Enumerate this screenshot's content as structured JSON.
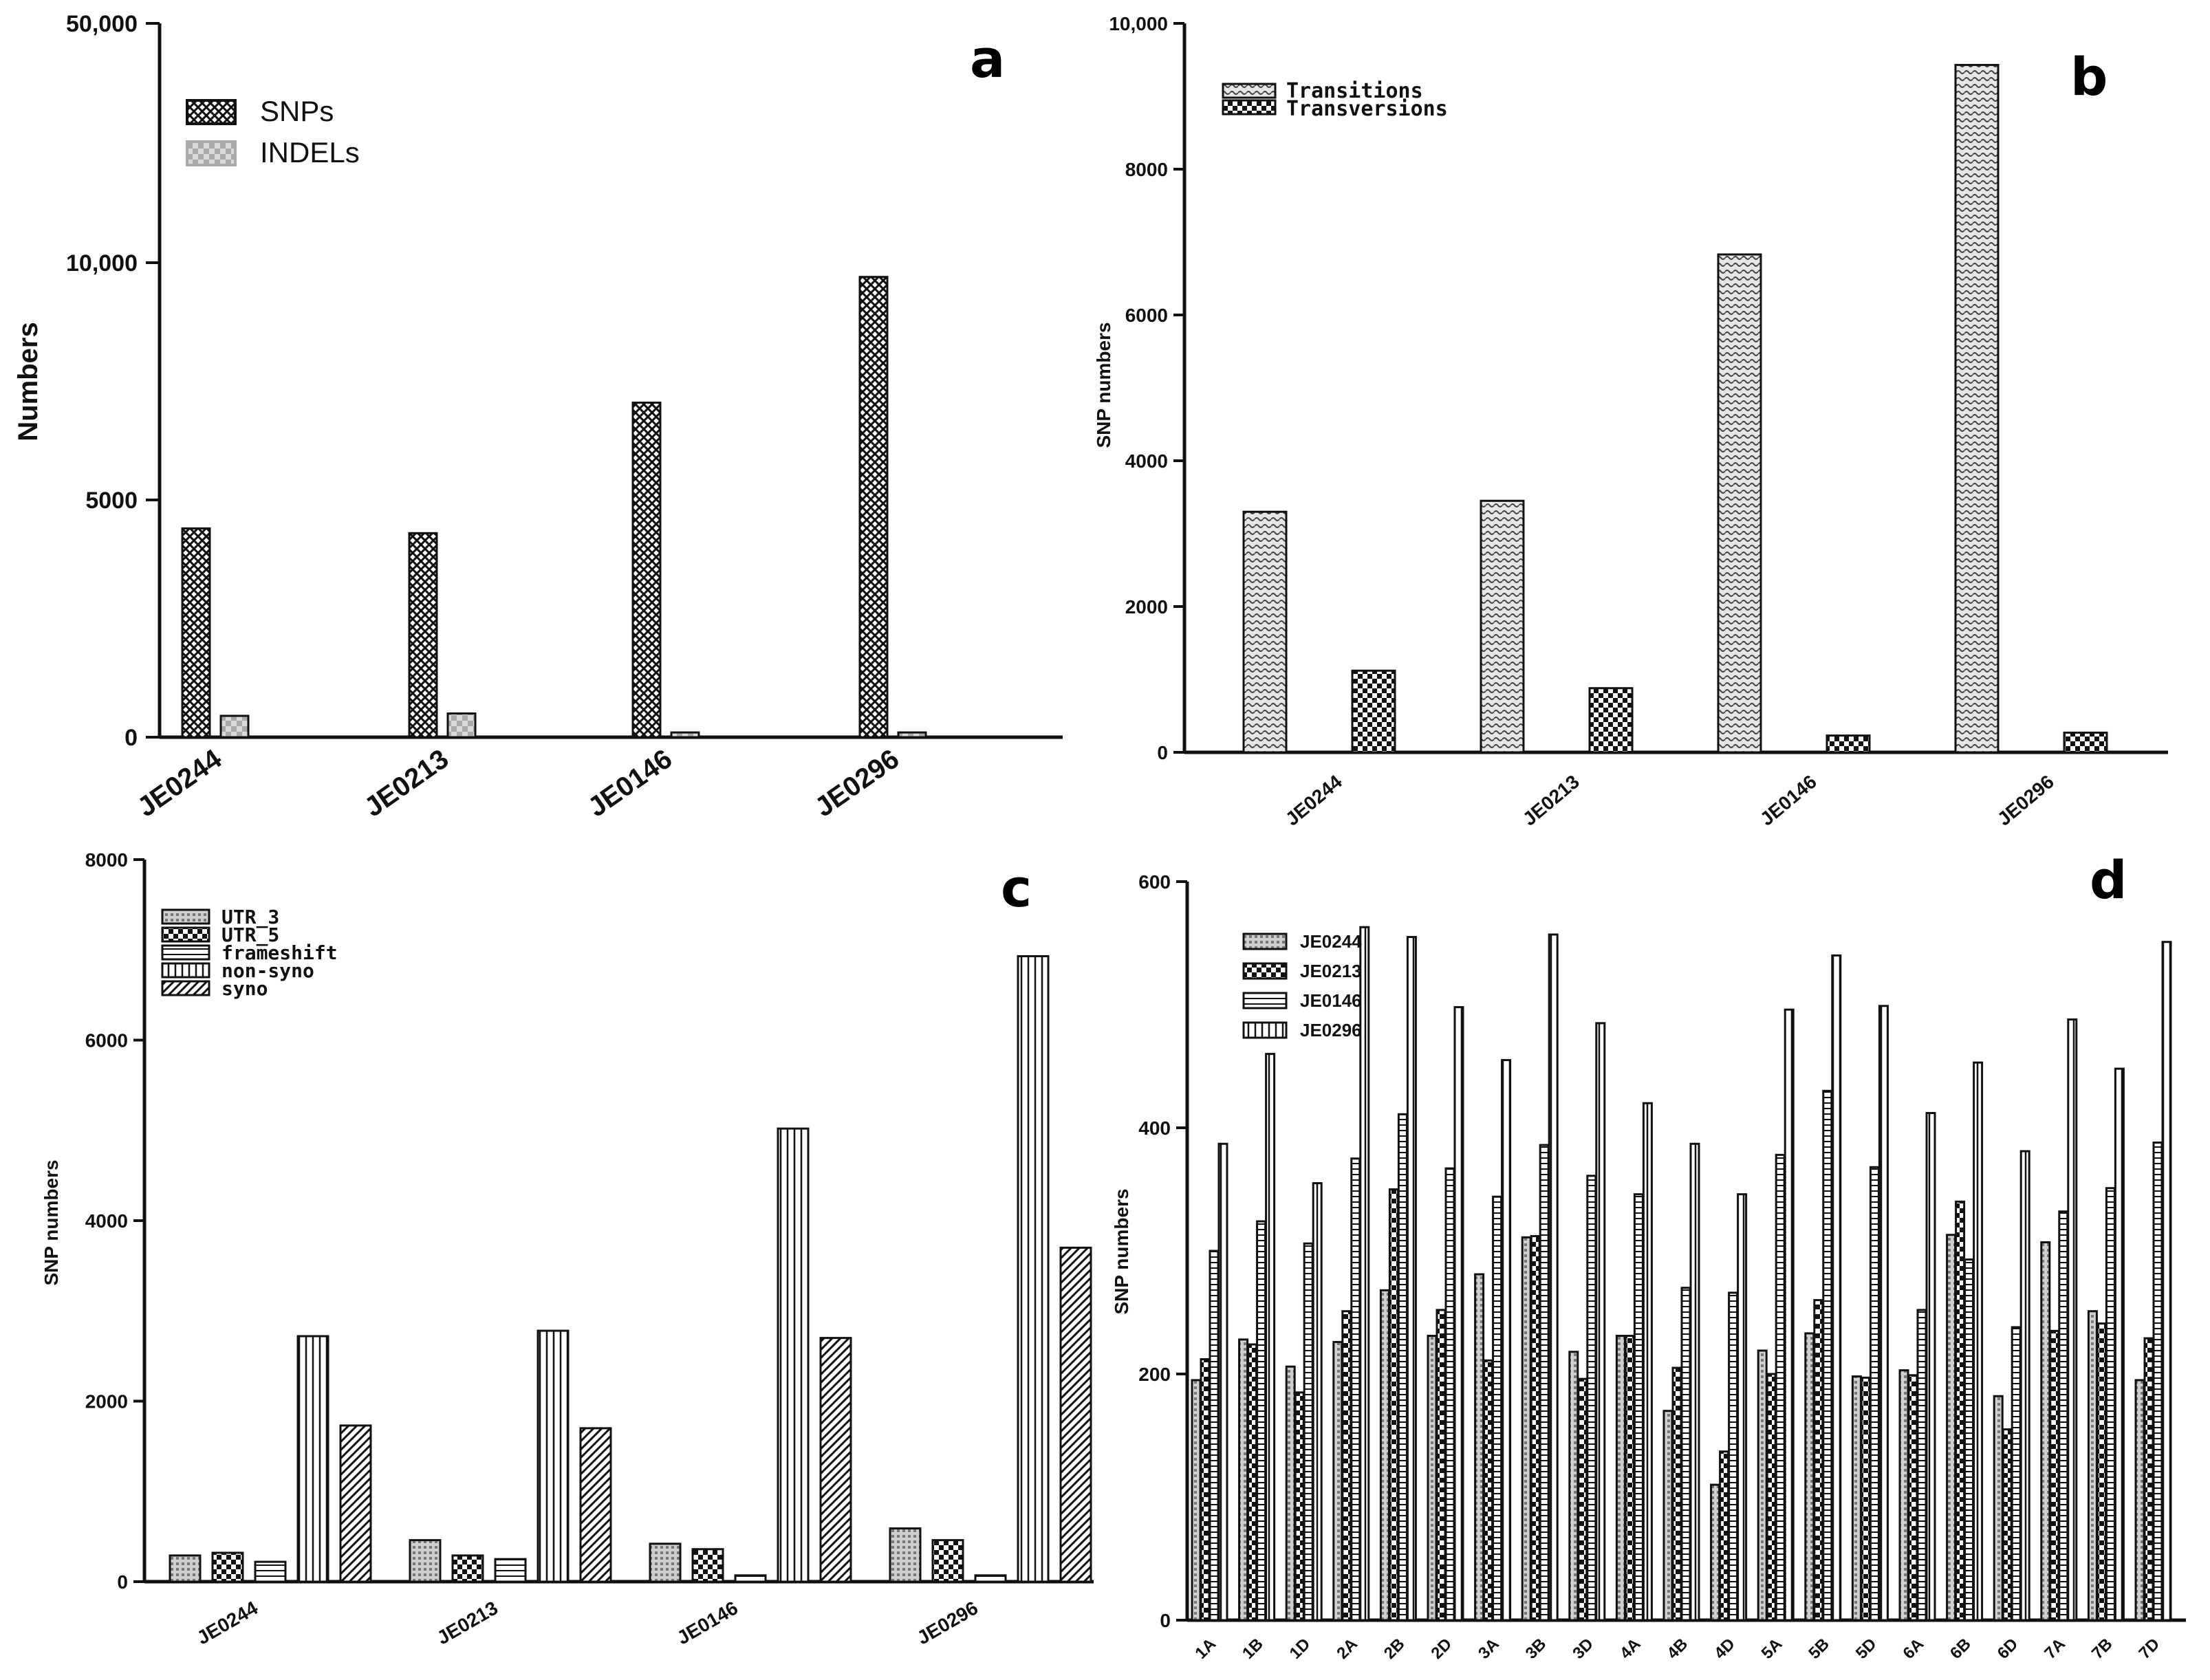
{
  "colors": {
    "ink": "#111111",
    "light": "#bdbdbd",
    "background": "#ffffff"
  },
  "chart_data": [
    {
      "id": "a",
      "type": "bar",
      "panel_label": "a",
      "title": "",
      "xlabel": "",
      "ylabel": "Numbers",
      "categories": [
        "JE0244",
        "JE0213",
        "JE0146",
        "JE0296"
      ],
      "series": [
        {
          "name": "SNPs",
          "values": [
            4400,
            4300,
            7050,
            9700
          ]
        },
        {
          "name": "INDELs",
          "values": [
            450,
            500,
            100,
            100
          ]
        }
      ],
      "y_axis_breaks": "segmented axis: 0-10000 linear with break to 50,000 at top",
      "yticks": [
        "0",
        "5000",
        "10,000",
        "50,000"
      ],
      "legend_position": "top-left"
    },
    {
      "id": "b",
      "type": "bar",
      "panel_label": "b",
      "title": "",
      "xlabel": "",
      "ylabel": "SNP numbers",
      "ylim": [
        0,
        10000
      ],
      "yticks": [
        "0",
        "2000",
        "4000",
        "6000",
        "8000",
        "10,000"
      ],
      "categories": [
        "JE0244",
        "JE0213",
        "JE0146",
        "JE0296"
      ],
      "series": [
        {
          "name": "Transitions",
          "values": [
            3300,
            3450,
            6830,
            9430
          ]
        },
        {
          "name": "Transversions",
          "values": [
            1120,
            880,
            230,
            270
          ]
        }
      ],
      "legend_position": "top-left"
    },
    {
      "id": "c",
      "type": "bar",
      "panel_label": "c",
      "title": "",
      "xlabel": "",
      "ylabel": "SNP numbers",
      "ylim": [
        0,
        8000
      ],
      "yticks": [
        "0",
        "2000",
        "4000",
        "6000",
        "8000"
      ],
      "categories": [
        "JE0244",
        "JE0213",
        "JE0146",
        "JE0296"
      ],
      "series": [
        {
          "name": "UTR_3",
          "values": [
            290,
            460,
            420,
            590
          ]
        },
        {
          "name": "UTR_5",
          "values": [
            320,
            290,
            360,
            460
          ]
        },
        {
          "name": "frameshift",
          "values": [
            220,
            250,
            70,
            70
          ]
        },
        {
          "name": "non-syno",
          "values": [
            2720,
            2780,
            5020,
            6930
          ]
        },
        {
          "name": "syno",
          "values": [
            1730,
            1700,
            2700,
            3700
          ]
        }
      ],
      "legend_position": "top-left"
    },
    {
      "id": "d",
      "type": "bar",
      "panel_label": "d",
      "title": "",
      "xlabel": "",
      "ylabel": "SNP numbers",
      "ylim": [
        0,
        600
      ],
      "yticks": [
        "0",
        "200",
        "400",
        "600"
      ],
      "categories": [
        "1A",
        "1B",
        "1D",
        "2A",
        "2B",
        "2D",
        "3A",
        "3B",
        "3D",
        "4A",
        "4B",
        "4D",
        "5A",
        "5B",
        "5D",
        "6A",
        "6B",
        "6D",
        "7A",
        "7B",
        "7D"
      ],
      "series": [
        {
          "name": "JE0244",
          "values": [
            195,
            228,
            206,
            226,
            268,
            231,
            281,
            311,
            218,
            231,
            170,
            110,
            219,
            233,
            198,
            203,
            313,
            182,
            307,
            251,
            195
          ]
        },
        {
          "name": "JE0213",
          "values": [
            212,
            224,
            185,
            251,
            350,
            252,
            211,
            312,
            196,
            231,
            205,
            137,
            200,
            260,
            197,
            199,
            340,
            155,
            235,
            241,
            229
          ]
        },
        {
          "name": "JE0146",
          "values": [
            300,
            324,
            306,
            375,
            411,
            367,
            344,
            386,
            361,
            346,
            270,
            266,
            378,
            430,
            368,
            252,
            293,
            238,
            332,
            351,
            388
          ]
        },
        {
          "name": "JE0296",
          "values": [
            387,
            460,
            355,
            563,
            555,
            498,
            455,
            557,
            485,
            420,
            387,
            346,
            496,
            540,
            499,
            412,
            453,
            381,
            488,
            448,
            551
          ]
        }
      ],
      "legend_position": "top-left"
    }
  ]
}
